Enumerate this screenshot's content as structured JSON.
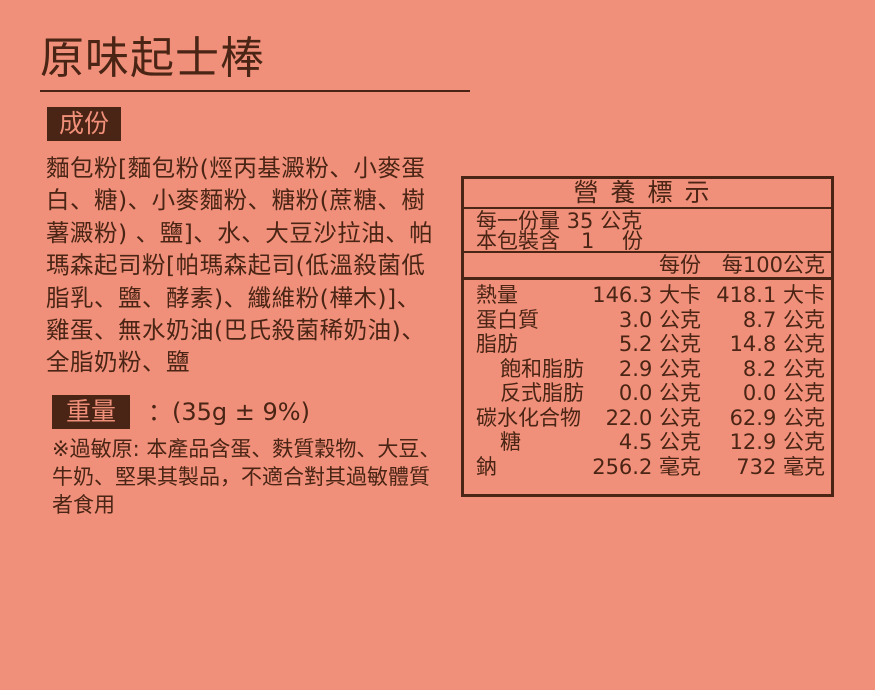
{
  "title": "原味起士棒",
  "ingredients": {
    "label": "成份",
    "text": "麵包粉[麵包粉(烴丙基澱粉、小麥蛋白、糖)、小麥麵粉、糖粉(蔗糖、樹薯澱粉) 、鹽]、水、大豆沙拉油、帕瑪森起司粉[帕瑪森起司(低溫殺菌低脂乳、鹽、酵素)、纖維粉(樺木)]、雞蛋、無水奶油(巴氏殺菌稀奶油)、全脂奶粉、鹽"
  },
  "weight": {
    "label": "重量",
    "value": "：(35g ± 9%)"
  },
  "allergy": "※過敏原: 本產品含蛋、麩質穀物、大豆、牛奶、堅果其製品，不適合對其過敏體質者食用",
  "nutrition": {
    "title": "營養標示",
    "serving_size": "每一份量 35 公克",
    "servings": "本包裝含　1　 份",
    "col_per_serving": "每份",
    "col_per_100g": "每100公克",
    "rows": [
      {
        "name": "熱量",
        "per_serving": "146.3 大卡",
        "per_100g": "418.1 大卡",
        "indent": false
      },
      {
        "name": "蛋白質",
        "per_serving": "3.0 公克",
        "per_100g": "8.7 公克",
        "indent": false
      },
      {
        "name": "脂肪",
        "per_serving": "5.2 公克",
        "per_100g": "14.8 公克",
        "indent": false
      },
      {
        "name": "飽和脂肪",
        "per_serving": "2.9 公克",
        "per_100g": "8.2 公克",
        "indent": true
      },
      {
        "name": "反式脂肪",
        "per_serving": "0.0 公克",
        "per_100g": "0.0 公克",
        "indent": true
      },
      {
        "name": "碳水化合物",
        "per_serving": "22.0 公克",
        "per_100g": "62.9 公克",
        "indent": false
      },
      {
        "name": "糖",
        "per_serving": "4.5 公克",
        "per_100g": "12.9 公克",
        "indent": true
      },
      {
        "name": "鈉",
        "per_serving": "256.2 毫克",
        "per_100g": "732 毫克",
        "indent": false
      }
    ]
  },
  "colors": {
    "background": "#F0907A",
    "text": "#4a2414"
  }
}
